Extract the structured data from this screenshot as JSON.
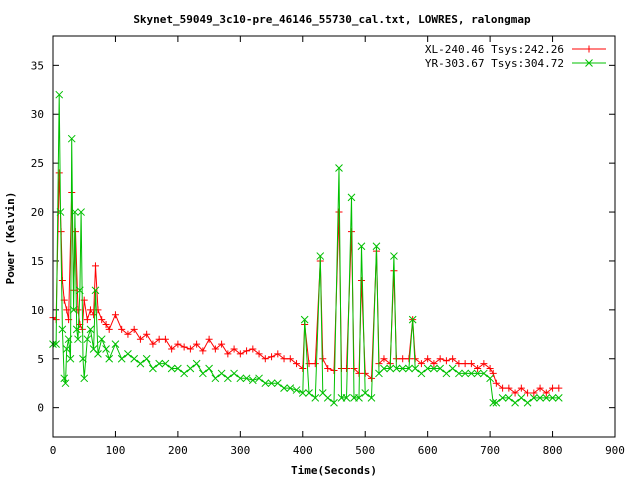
{
  "chart_data": {
    "type": "line",
    "title": "Skynet_59049_3c10-pre_46146_55730_cal.txt, LOWRES, ralongmap",
    "xlabel": "Time(Seconds)",
    "ylabel": "Power (Kelvin)",
    "xlim": [
      0,
      900
    ],
    "ylim": [
      -3,
      38
    ],
    "xticks": [
      0,
      100,
      200,
      300,
      400,
      500,
      600,
      700,
      800,
      900
    ],
    "yticks": [
      0,
      5,
      10,
      15,
      20,
      25,
      30,
      35
    ],
    "grid": false,
    "legend_position": "top-right",
    "series": [
      {
        "name": "XL-240.46 Tsys:242.26",
        "color": "#ff0000",
        "marker": "plus",
        "x": [
          0,
          5,
          10,
          13,
          15,
          18,
          22,
          25,
          30,
          33,
          36,
          40,
          43,
          47,
          50,
          55,
          60,
          65,
          68,
          72,
          78,
          85,
          90,
          100,
          110,
          120,
          130,
          140,
          150,
          160,
          170,
          180,
          190,
          200,
          210,
          220,
          230,
          240,
          250,
          260,
          270,
          280,
          290,
          300,
          310,
          320,
          330,
          340,
          350,
          360,
          370,
          380,
          390,
          400,
          403,
          410,
          420,
          428,
          432,
          440,
          450,
          458,
          462,
          470,
          478,
          482,
          490,
          494,
          500,
          510,
          518,
          522,
          530,
          540,
          546,
          550,
          560,
          570,
          576,
          580,
          590,
          600,
          610,
          620,
          630,
          640,
          650,
          660,
          670,
          680,
          690,
          700,
          705,
          710,
          720,
          730,
          740,
          750,
          760,
          770,
          780,
          790,
          800,
          810
        ],
        "y": [
          9.2,
          9.0,
          24.0,
          18.0,
          13.0,
          11.0,
          10.0,
          9.0,
          22.0,
          12.0,
          18.0,
          10.0,
          8.5,
          8.0,
          11.0,
          9.0,
          10.0,
          9.5,
          14.5,
          10.0,
          9.0,
          8.5,
          8.0,
          9.5,
          8.0,
          7.5,
          8.0,
          7.0,
          7.5,
          6.5,
          7.0,
          7.0,
          6.0,
          6.5,
          6.2,
          6.0,
          6.5,
          5.8,
          7.0,
          6.0,
          6.5,
          5.5,
          6.0,
          5.5,
          5.8,
          6.0,
          5.5,
          5.0,
          5.2,
          5.5,
          5.0,
          5.0,
          4.5,
          4.0,
          8.5,
          4.5,
          4.5,
          15.0,
          5.0,
          4.0,
          3.8,
          20.0,
          4.0,
          4.0,
          18.0,
          4.0,
          3.5,
          13.0,
          3.5,
          3.0,
          16.0,
          4.5,
          5.0,
          4.5,
          14.0,
          5.0,
          5.0,
          5.0,
          9.0,
          5.0,
          4.5,
          5.0,
          4.5,
          5.0,
          4.8,
          5.0,
          4.5,
          4.5,
          4.5,
          4.0,
          4.5,
          4.0,
          3.5,
          2.5,
          2.0,
          2.0,
          1.5,
          2.0,
          1.5,
          1.5,
          2.0,
          1.5,
          2.0,
          2.0
        ]
      },
      {
        "name": "YR-303.67 Tsys:304.72",
        "color": "#00c000",
        "marker": "cross",
        "x": [
          0,
          5,
          10,
          12,
          15,
          18,
          20,
          22,
          25,
          28,
          30,
          33,
          35,
          38,
          40,
          43,
          45,
          48,
          50,
          55,
          60,
          65,
          68,
          72,
          78,
          85,
          90,
          100,
          110,
          120,
          130,
          140,
          150,
          160,
          170,
          180,
          190,
          200,
          210,
          220,
          230,
          240,
          250,
          260,
          270,
          280,
          290,
          300,
          310,
          320,
          330,
          340,
          350,
          360,
          370,
          380,
          390,
          400,
          403,
          410,
          420,
          428,
          432,
          440,
          450,
          458,
          462,
          470,
          478,
          482,
          490,
          494,
          500,
          510,
          518,
          522,
          530,
          540,
          546,
          550,
          560,
          570,
          576,
          580,
          590,
          600,
          610,
          620,
          630,
          640,
          650,
          660,
          670,
          680,
          690,
          700,
          705,
          710,
          720,
          730,
          740,
          750,
          760,
          770,
          780,
          790,
          800,
          810
        ],
        "y": [
          6.5,
          6.5,
          32.0,
          20.0,
          8.0,
          3.0,
          2.5,
          6.0,
          7.0,
          5.0,
          27.5,
          10.0,
          20.0,
          8.0,
          7.0,
          12.0,
          20.0,
          5.0,
          3.0,
          7.0,
          8.0,
          6.0,
          12.0,
          5.5,
          7.0,
          6.0,
          5.0,
          6.5,
          5.0,
          5.5,
          5.0,
          4.5,
          5.0,
          4.0,
          4.5,
          4.5,
          4.0,
          4.0,
          3.5,
          4.0,
          4.5,
          3.5,
          4.0,
          3.0,
          3.5,
          3.0,
          3.5,
          3.0,
          3.0,
          2.8,
          3.0,
          2.5,
          2.5,
          2.5,
          2.0,
          2.0,
          1.8,
          1.5,
          9.0,
          1.5,
          1.0,
          15.5,
          1.5,
          1.0,
          0.5,
          24.5,
          1.0,
          1.0,
          21.5,
          1.0,
          1.0,
          16.5,
          1.5,
          1.0,
          16.5,
          3.5,
          4.0,
          4.0,
          15.5,
          4.0,
          4.0,
          4.0,
          9.0,
          4.0,
          3.5,
          4.0,
          4.0,
          4.0,
          3.5,
          4.0,
          3.5,
          3.5,
          3.5,
          3.5,
          3.5,
          3.0,
          0.5,
          0.5,
          1.0,
          1.0,
          0.5,
          1.0,
          0.5,
          1.0,
          1.0,
          1.0,
          1.0,
          1.0
        ]
      }
    ]
  }
}
